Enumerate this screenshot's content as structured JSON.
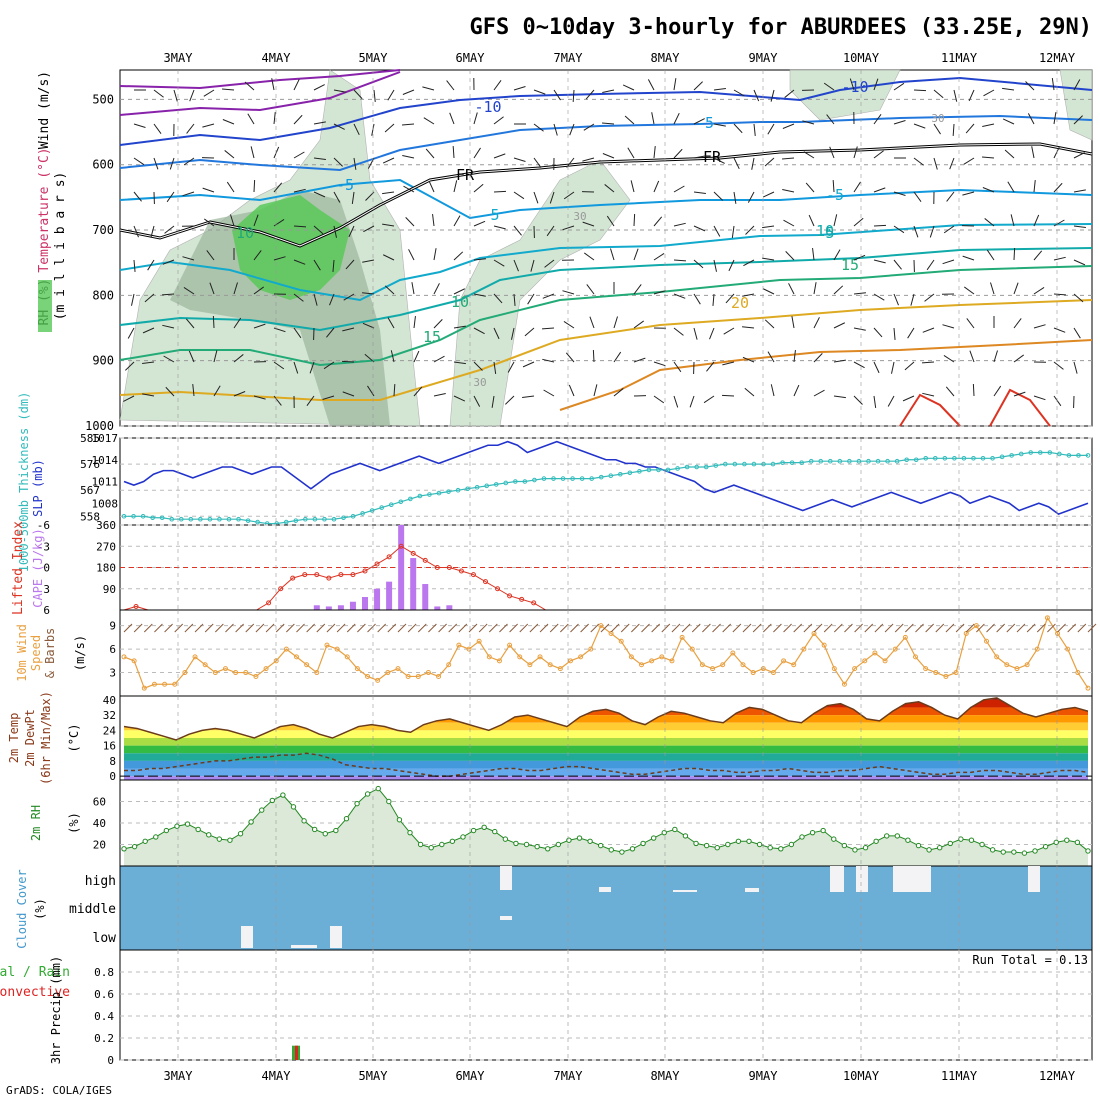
{
  "title": "GFS 0~10day 3-hourly for ABURDEES (33.25E, 29N)",
  "footer": "GrADS: COLA/IGES",
  "colors": {
    "rh_fill": "#cfe3cf",
    "rh_dark": "#9bb59b",
    "rh_green": "#58c958",
    "slp": "#2233cc",
    "thickness": "#33bbbb",
    "lifted_index": "#dd3322",
    "cape": "#bb77ee",
    "wind": "#e8a040",
    "rh2m": "#228822",
    "cloud_bg": "#6baed6",
    "precip_total": "#33aa33",
    "precip_conv": "#dd2222"
  },
  "chart_data": [
    {
      "type": "line",
      "panel": "upper-air",
      "ylabel_parts": [
        "RH (%)",
        "Temperature (°C)",
        "Wind (m/s)"
      ],
      "ylabel_units": "millibars",
      "x_ticks": [
        "3MAY",
        "4MAY",
        "5MAY",
        "6MAY",
        "7MAY",
        "8MAY",
        "9MAY",
        "10MAY",
        "11MAY",
        "12MAY"
      ],
      "y_ticks": [
        500,
        600,
        700,
        800,
        900,
        1000
      ],
      "contour_labels": [
        "-10",
        "-10",
        "-5",
        "-5",
        "-5",
        "5",
        "5",
        "FR",
        "FR",
        "10",
        "10",
        "10",
        "15",
        "15",
        "20",
        "30",
        "30",
        "30"
      ]
    },
    {
      "type": "line",
      "panel": "slp-thickness",
      "ylabel_left": "1000-500mb Thickness (dm)",
      "ylabel_right": "SLP (mb)",
      "left_ticks": [
        "585",
        "576",
        "567",
        "558"
      ],
      "right_ticks": [
        "1017",
        "1014",
        "1011",
        "1008"
      ],
      "series": [
        {
          "name": "SLP",
          "values": [
            1011,
            1010.5,
            1011,
            1012,
            1012.5,
            1012.5,
            1012,
            1011.5,
            1012,
            1012.5,
            1013,
            1013,
            1012.5,
            1012,
            1012.5,
            1013,
            1013,
            1012,
            1011,
            1010,
            1011,
            1012,
            1012.5,
            1013,
            1013.5,
            1013,
            1012.5,
            1013,
            1013.5,
            1014,
            1014.5,
            1014,
            1013.5,
            1014,
            1014.5,
            1015,
            1015.5,
            1016,
            1016,
            1016.5,
            1016,
            1015,
            1015.5,
            1016,
            1016.5,
            1016,
            1015.5,
            1015,
            1014.5,
            1014,
            1014,
            1013.5,
            1013.5,
            1013,
            1013,
            1012.5,
            1012,
            1011.5,
            1011,
            1010,
            1009.5,
            1010,
            1010.5,
            1010,
            1009.5,
            1009,
            1008.5,
            1008,
            1007.5,
            1007,
            1007.5,
            1008,
            1008.5,
            1008,
            1007.5,
            1008,
            1008.5,
            1009,
            1009.5,
            1009,
            1008.5,
            1008,
            1008.5,
            1009,
            1009.5,
            1009,
            1008,
            1008.5,
            1009,
            1008.5,
            1008,
            1007,
            1007.5,
            1008,
            1007.5,
            1006.5,
            1007,
            1007.5,
            1008
          ]
        },
        {
          "name": "1000-500mb Thickness",
          "values": [
            558,
            558,
            558,
            557.5,
            557.5,
            557,
            557,
            557,
            557,
            557,
            557,
            557,
            557,
            556.5,
            556,
            555.5,
            555.5,
            556,
            556.5,
            557,
            557,
            557,
            557,
            557.5,
            558,
            559,
            560,
            561,
            562,
            563,
            564,
            565,
            565.5,
            566,
            566.5,
            567,
            567.5,
            568,
            568.5,
            569,
            569.5,
            570,
            570,
            570.5,
            571,
            571,
            571,
            571,
            571,
            571,
            571.5,
            572,
            572.5,
            573,
            573.5,
            574,
            574,
            574,
            574.5,
            575,
            575,
            575,
            575.5,
            576,
            576,
            576,
            576,
            576,
            576,
            576.5,
            576.5,
            576.5,
            577,
            577,
            577,
            577,
            577,
            577,
            577,
            577,
            577,
            577,
            577.5,
            577.5,
            578,
            578,
            578,
            578,
            578,
            578,
            578,
            578,
            578.5,
            579,
            579.5,
            580,
            580,
            580,
            579.5,
            579,
            579,
            579
          ]
        }
      ]
    },
    {
      "type": "bar",
      "panel": "cape-li",
      "ylabel_left": "Lifted Index",
      "ylabel_right": "CAPE (J/kg)",
      "left_ticks": [
        "-6",
        "-3",
        "0",
        "3",
        "6"
      ],
      "right_ticks": [
        "360",
        "270",
        "180",
        "90"
      ],
      "series": [
        {
          "name": "CAPE",
          "values": [
            0,
            0,
            0,
            0,
            0,
            0,
            0,
            0,
            0,
            0,
            0,
            0,
            0,
            0,
            0,
            0,
            20,
            15,
            20,
            35,
            55,
            90,
            120,
            360,
            220,
            110,
            15,
            20,
            0,
            0,
            0,
            0,
            0,
            0,
            0,
            0,
            0,
            0,
            0,
            0,
            0,
            0,
            0,
            0,
            0,
            0,
            0,
            0,
            0,
            0,
            0,
            0,
            0,
            0,
            0,
            0,
            0,
            0,
            0,
            0,
            0,
            0,
            0,
            0,
            0,
            0,
            0,
            0,
            0,
            0,
            0,
            0,
            0,
            0,
            0,
            0,
            0,
            0,
            0,
            0,
            0
          ]
        },
        {
          "name": "Lifted Index",
          "values": [
            6,
            5.5,
            6,
            6,
            6,
            6,
            6,
            6,
            6,
            6,
            6,
            6,
            5,
            3,
            1.5,
            1,
            1,
            1.5,
            1,
            1,
            0.5,
            -0.5,
            -1.5,
            -3,
            -2,
            -1,
            0,
            0,
            0.5,
            1,
            2,
            3,
            4,
            4.5,
            5,
            6,
            6,
            6,
            6,
            6,
            6,
            6,
            6,
            6,
            6,
            6,
            6,
            6,
            6,
            6,
            6,
            6,
            6,
            6,
            6,
            6,
            6,
            6,
            6,
            6,
            6,
            6,
            6,
            6,
            6,
            6,
            6,
            6,
            6,
            6,
            6,
            6,
            6,
            6,
            6,
            6,
            6,
            6,
            6,
            6,
            6
          ]
        }
      ]
    },
    {
      "type": "line",
      "panel": "wind10m",
      "ylabel": "10m Wind Speed & Barbs",
      "units": "(m/s)",
      "y_ticks": [
        "9",
        "6",
        "3"
      ],
      "series": [
        {
          "name": "10m Wind Speed",
          "values": [
            5,
            4.5,
            1,
            1.5,
            1.5,
            1.5,
            3,
            5,
            4,
            3,
            3.5,
            3,
            3,
            2.5,
            3.5,
            4.5,
            6,
            5,
            4,
            3,
            6.5,
            6,
            5,
            3.5,
            2.5,
            2,
            3,
            3.5,
            2.5,
            2.5,
            3,
            2.5,
            4,
            6.5,
            6,
            7,
            5,
            4.5,
            6.5,
            5,
            4,
            5,
            4,
            3.5,
            4.5,
            5,
            6,
            9,
            8,
            7,
            5,
            4,
            4.5,
            5,
            4.5,
            7.5,
            6,
            4,
            3.5,
            4,
            5.5,
            4,
            3,
            3.5,
            3,
            4.5,
            4,
            6,
            8,
            6.5,
            3.5,
            1.5,
            3.5,
            4.5,
            5.5,
            4.5,
            6,
            7.5,
            5,
            3.5,
            3,
            2.5,
            3,
            8,
            9,
            7,
            5,
            4,
            3.5,
            4,
            6,
            10,
            8,
            6,
            3,
            1
          ]
        }
      ]
    },
    {
      "type": "area",
      "panel": "temp2m",
      "ylabel": "2m Temp 2m DewPt (6hr Min/Max)",
      "units": "(°C)",
      "y_ticks": [
        "40",
        "32",
        "24",
        "16",
        "8",
        "0"
      ],
      "series": [
        {
          "name": "2m Temp",
          "values": [
            26,
            25,
            23,
            21,
            19,
            22,
            24,
            25,
            24,
            22,
            20,
            23,
            26,
            27,
            25,
            22,
            20,
            23,
            26,
            27,
            26,
            24,
            23,
            27,
            29,
            30,
            28,
            26,
            24,
            27,
            31,
            32,
            30,
            28,
            26,
            31,
            34,
            35,
            33,
            29,
            27,
            31,
            34,
            33,
            31,
            29,
            28,
            33,
            36,
            35,
            32,
            29,
            28,
            33,
            37,
            38,
            35,
            30,
            29,
            34,
            38,
            39,
            36,
            32,
            30,
            36,
            40,
            41,
            37,
            33,
            31,
            33,
            35,
            36,
            34
          ]
        },
        {
          "name": "2m DewPt",
          "values": [
            3,
            3,
            4,
            4,
            5,
            6,
            7,
            8,
            8,
            9,
            10,
            10,
            11,
            11,
            12,
            11,
            9,
            6,
            5,
            4,
            4,
            3,
            2,
            1,
            0,
            0,
            1,
            2,
            3,
            4,
            4,
            3,
            3,
            4,
            5,
            5,
            4,
            3,
            2,
            1,
            1,
            2,
            3,
            4,
            4,
            3,
            3,
            2,
            2,
            3,
            3,
            4,
            3,
            2,
            2,
            3,
            3,
            4,
            5,
            4,
            3,
            2,
            1,
            1,
            2,
            2,
            3,
            3,
            2,
            1,
            1,
            2,
            3,
            3,
            2
          ]
        }
      ]
    },
    {
      "type": "area",
      "panel": "rh2m",
      "ylabel": "2m RH",
      "units": "(%)",
      "y_ticks": [
        "60",
        "40",
        "20"
      ],
      "series": [
        {
          "name": "2m RH",
          "values": [
            16,
            18,
            23,
            27,
            33,
            37,
            39,
            34,
            29,
            25,
            24,
            30,
            41,
            52,
            61,
            66,
            55,
            42,
            34,
            30,
            33,
            44,
            58,
            67,
            72,
            60,
            43,
            31,
            20,
            17,
            20,
            23,
            27,
            33,
            36,
            32,
            25,
            21,
            20,
            18,
            16,
            20,
            24,
            26,
            23,
            19,
            15,
            13,
            16,
            21,
            26,
            31,
            34,
            28,
            21,
            19,
            17,
            20,
            23,
            23,
            20,
            17,
            16,
            20,
            27,
            31,
            33,
            25,
            19,
            15,
            17,
            23,
            28,
            28,
            24,
            19,
            15,
            17,
            21,
            25,
            24,
            20,
            15,
            13,
            13,
            12,
            14,
            18,
            22,
            24,
            22,
            14
          ]
        }
      ]
    },
    {
      "type": "bar",
      "panel": "cloud",
      "ylabel": "Cloud Cover (%)",
      "y_ticks": [
        "high",
        "middle",
        "low"
      ]
    },
    {
      "type": "bar",
      "panel": "precip",
      "ylabel": "3hr Precip (mm)",
      "legend": [
        "Total / Rain",
        "Convective"
      ],
      "annotation": "Run Total = 0.13",
      "y_ticks": [
        "0.8",
        "0.6",
        "0.4",
        "0.2",
        "0"
      ],
      "x_ticks": [
        "3MAY",
        "4MAY",
        "5MAY",
        "6MAY",
        "7MAY",
        "8MAY",
        "9MAY",
        "10MAY",
        "11MAY",
        "12MAY"
      ]
    }
  ],
  "labels": {
    "rh": "RH (%)",
    "temperature": "Temperature (°C)",
    "wind": "Wind (m/s)",
    "millibars": "(m i l l i b a r s)",
    "thickness": "1000-500mb Thickness (dm)",
    "slp": "SLP (mb)",
    "lifted_index": "Lifted Index",
    "cape": "CAPE (J/kg)",
    "wind10m_a": "10m Wind",
    "wind10m_b": "Speed",
    "wind10m_c": "& Barbs",
    "ms": "(m/s)",
    "temp2m_a": "2m Temp",
    "temp2m_b": "2m DewPt",
    "temp2m_c": "(6hr Min/Max)",
    "degc": "(°C)",
    "rh2m": "2m RH",
    "pct": "(%)",
    "cloud": "Cloud Cover",
    "cloud_pct": "(%)",
    "precip_a": "Total / Rain",
    "precip_b": "Convective",
    "precip_c": "3hr Precip (mm)",
    "run_total": "Run Total = 0.13"
  }
}
